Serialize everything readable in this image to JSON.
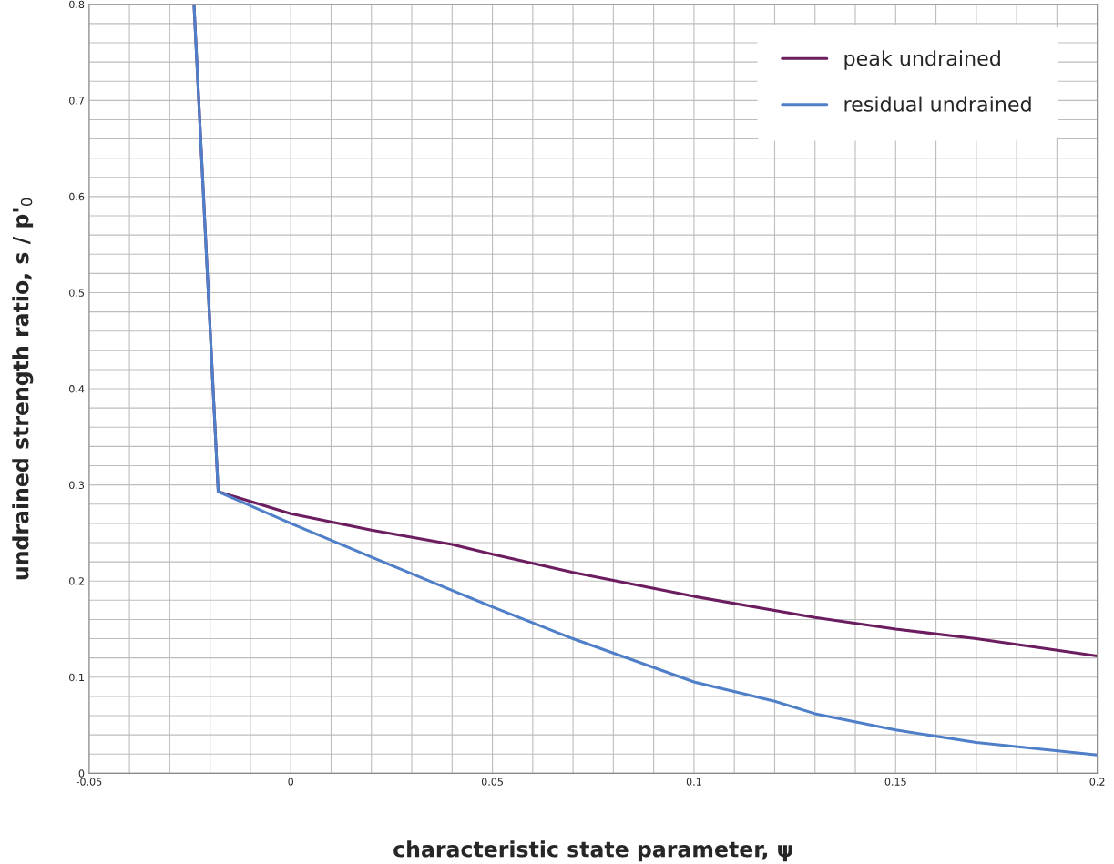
{
  "chart_data": {
    "type": "line",
    "xlabel": "characteristic state parameter, ψ",
    "ylabel": "undrained strength ratio, s / p'$_{0}$",
    "xlim": [
      -0.05,
      0.2
    ],
    "ylim": [
      0,
      0.8
    ],
    "xticks": [
      {
        "value": -0.05,
        "label": "-0.05"
      },
      {
        "value": -0.04,
        "label": null
      },
      {
        "value": -0.03,
        "label": null
      },
      {
        "value": -0.02,
        "label": null
      },
      {
        "value": -0.01,
        "label": null
      },
      {
        "value": 0,
        "label": "0"
      },
      {
        "value": 0.01,
        "label": null
      },
      {
        "value": 0.02,
        "label": null
      },
      {
        "value": 0.03,
        "label": null
      },
      {
        "value": 0.04,
        "label": null
      },
      {
        "value": 0.05,
        "label": "0.05"
      },
      {
        "value": 0.06,
        "label": null
      },
      {
        "value": 0.07,
        "label": null
      },
      {
        "value": 0.08,
        "label": null
      },
      {
        "value": 0.09,
        "label": null
      },
      {
        "value": 0.1,
        "label": "0.1"
      },
      {
        "value": 0.11,
        "label": null
      },
      {
        "value": 0.12,
        "label": null
      },
      {
        "value": 0.13,
        "label": null
      },
      {
        "value": 0.14,
        "label": null
      },
      {
        "value": 0.15,
        "label": "0.15"
      },
      {
        "value": 0.16,
        "label": null
      },
      {
        "value": 0.17,
        "label": null
      },
      {
        "value": 0.18,
        "label": null
      },
      {
        "value": 0.19,
        "label": null
      },
      {
        "value": 0.2,
        "label": "0.2"
      }
    ],
    "yticks": [
      0,
      {
        "value": 0.02,
        "label": null
      },
      {
        "value": 0.04,
        "label": null
      },
      {
        "value": 0.06,
        "label": null
      },
      {
        "value": 0.08,
        "label": null
      },
      0.1,
      {
        "value": 0.12,
        "label": null
      },
      {
        "value": 0.14,
        "label": null
      },
      {
        "value": 0.16,
        "label": null
      },
      {
        "value": 0.18,
        "label": null
      },
      0.2,
      {
        "value": 0.22,
        "label": null
      },
      {
        "value": 0.24,
        "label": null
      },
      {
        "value": 0.26,
        "label": null
      },
      {
        "value": 0.28,
        "label": null
      },
      0.3,
      {
        "value": 0.32,
        "label": null
      },
      {
        "value": 0.34,
        "label": null
      },
      {
        "value": 0.36,
        "label": null
      },
      {
        "value": 0.38,
        "label": null
      },
      0.4,
      {
        "value": 0.42,
        "label": null
      },
      {
        "value": 0.44,
        "label": null
      },
      {
        "value": 0.46,
        "label": null
      },
      {
        "value": 0.48,
        "label": null
      },
      0.5,
      {
        "value": 0.52,
        "label": null
      },
      {
        "value": 0.54,
        "label": null
      },
      {
        "value": 0.56,
        "label": null
      },
      {
        "value": 0.58,
        "label": null
      },
      0.6,
      {
        "value": 0.62,
        "label": null
      },
      {
        "value": 0.64,
        "label": null
      },
      {
        "value": 0.66,
        "label": null
      },
      {
        "value": 0.68,
        "label": null
      },
      0.7,
      {
        "value": 0.72,
        "label": null
      },
      {
        "value": 0.74,
        "label": null
      },
      {
        "value": 0.76,
        "label": null
      },
      {
        "value": 0.78,
        "label": null
      },
      0.8
    ],
    "grid": true,
    "legend": "top right",
    "marker": "none",
    "line_style": "solid",
    "series": [
      {
        "name": "peak undrained",
        "color": "#6b1d5f",
        "x": [
          -0.024,
          -0.018,
          0,
          0.02,
          0.04,
          0.05,
          0.07,
          0.1,
          0.13,
          0.15,
          0.17,
          0.2
        ],
        "values": [
          0.8,
          0.293,
          0.27,
          0.253,
          0.238,
          0.228,
          0.209,
          0.184,
          0.162,
          0.15,
          0.14,
          0.122
        ]
      },
      {
        "name": "residual undrained",
        "color": "#4f7fc8",
        "x": [
          -0.024,
          -0.018,
          0,
          0.02,
          0.05,
          0.07,
          0.1,
          0.12,
          0.13,
          0.15,
          0.17,
          0.2
        ],
        "values": [
          0.8,
          0.293,
          0.26,
          0.225,
          0.173,
          0.14,
          0.095,
          0.075,
          0.062,
          0.045,
          0.032,
          0.019
        ]
      }
    ]
  }
}
